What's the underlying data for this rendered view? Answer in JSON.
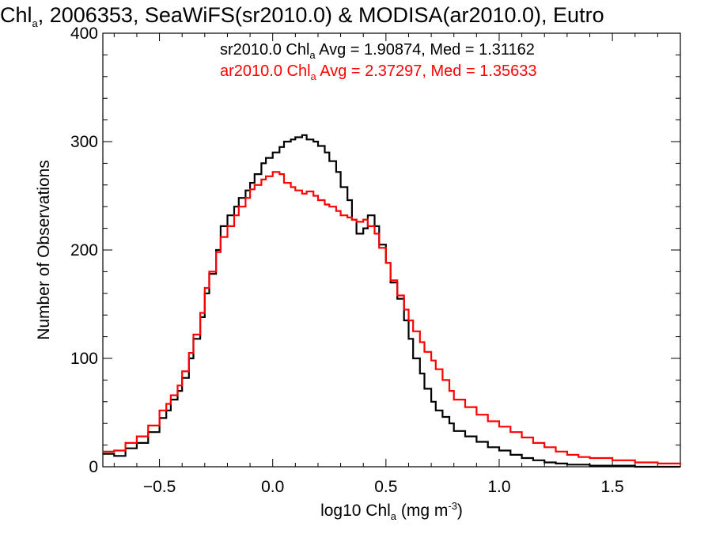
{
  "chart_data": {
    "type": "line",
    "title": {
      "pre": "Chl",
      "sub": "a",
      "post": ", 2006353, SeaWiFS(sr2010.0) & MODISA(ar2010.0), Eutro"
    },
    "xlabel": {
      "pre": "log10 Chl",
      "sub": "a",
      "mid": " (mg m",
      "sup": "-3",
      "post": ")"
    },
    "ylabel": "Number of Observations",
    "xlim": [
      -0.75,
      1.8
    ],
    "ylim": [
      0,
      400
    ],
    "x_ticks": [
      -0.5,
      0.0,
      0.5,
      1.0,
      1.5
    ],
    "x_tick_labels": [
      "−0.5",
      "0.0",
      "0.5",
      "1.0",
      "1.5"
    ],
    "y_ticks": [
      0,
      100,
      200,
      300,
      400
    ],
    "y_tick_labels": [
      "0",
      "100",
      "200",
      "300",
      "400"
    ],
    "grid": false,
    "legend_position": "top-right",
    "series": [
      {
        "color": "#000000",
        "legend": {
          "pre": "sr2010.0 Chl",
          "sub": "a",
          "post": " Avg = 1.90874, Med = 1.31162"
        },
        "points": [
          [
            -0.75,
            12
          ],
          [
            -0.7,
            10
          ],
          [
            -0.65,
            17
          ],
          [
            -0.6,
            22
          ],
          [
            -0.55,
            32
          ],
          [
            -0.5,
            45
          ],
          [
            -0.47,
            52
          ],
          [
            -0.45,
            62
          ],
          [
            -0.42,
            70
          ],
          [
            -0.4,
            82
          ],
          [
            -0.37,
            100
          ],
          [
            -0.35,
            118
          ],
          [
            -0.32,
            138
          ],
          [
            -0.3,
            160
          ],
          [
            -0.28,
            178
          ],
          [
            -0.25,
            200
          ],
          [
            -0.23,
            222
          ],
          [
            -0.2,
            232
          ],
          [
            -0.17,
            240
          ],
          [
            -0.15,
            248
          ],
          [
            -0.12,
            255
          ],
          [
            -0.1,
            262
          ],
          [
            -0.08,
            270
          ],
          [
            -0.05,
            280
          ],
          [
            -0.03,
            285
          ],
          [
            0.0,
            290
          ],
          [
            0.03,
            295
          ],
          [
            0.05,
            300
          ],
          [
            0.08,
            302
          ],
          [
            0.1,
            304
          ],
          [
            0.13,
            306
          ],
          [
            0.15,
            302
          ],
          [
            0.18,
            300
          ],
          [
            0.2,
            296
          ],
          [
            0.23,
            290
          ],
          [
            0.25,
            282
          ],
          [
            0.28,
            272
          ],
          [
            0.3,
            258
          ],
          [
            0.33,
            246
          ],
          [
            0.35,
            228
          ],
          [
            0.37,
            215
          ],
          [
            0.4,
            220
          ],
          [
            0.42,
            232
          ],
          [
            0.45,
            222
          ],
          [
            0.47,
            205
          ],
          [
            0.5,
            188
          ],
          [
            0.52,
            170
          ],
          [
            0.55,
            155
          ],
          [
            0.58,
            135
          ],
          [
            0.6,
            118
          ],
          [
            0.62,
            100
          ],
          [
            0.65,
            86
          ],
          [
            0.67,
            72
          ],
          [
            0.7,
            60
          ],
          [
            0.72,
            52
          ],
          [
            0.75,
            46
          ],
          [
            0.78,
            40
          ],
          [
            0.8,
            33
          ],
          [
            0.85,
            28
          ],
          [
            0.9,
            23
          ],
          [
            0.95,
            18
          ],
          [
            1.0,
            15
          ],
          [
            1.05,
            11
          ],
          [
            1.1,
            8
          ],
          [
            1.15,
            6
          ],
          [
            1.2,
            4
          ],
          [
            1.25,
            3
          ],
          [
            1.3,
            2
          ],
          [
            1.4,
            1
          ],
          [
            1.5,
            1
          ],
          [
            1.6,
            0
          ],
          [
            1.7,
            0
          ],
          [
            1.8,
            0
          ]
        ]
      },
      {
        "color": "#ff0000",
        "legend": {
          "pre": "ar2010.0 Chl",
          "sub": "a",
          "post": " Avg = 2.37297, Med = 1.35633"
        },
        "points": [
          [
            -0.75,
            14
          ],
          [
            -0.7,
            15
          ],
          [
            -0.65,
            22
          ],
          [
            -0.6,
            28
          ],
          [
            -0.55,
            38
          ],
          [
            -0.5,
            52
          ],
          [
            -0.47,
            58
          ],
          [
            -0.45,
            66
          ],
          [
            -0.42,
            75
          ],
          [
            -0.4,
            88
          ],
          [
            -0.37,
            105
          ],
          [
            -0.35,
            122
          ],
          [
            -0.32,
            142
          ],
          [
            -0.3,
            165
          ],
          [
            -0.28,
            180
          ],
          [
            -0.25,
            198
          ],
          [
            -0.23,
            212
          ],
          [
            -0.2,
            222
          ],
          [
            -0.17,
            232
          ],
          [
            -0.15,
            240
          ],
          [
            -0.12,
            248
          ],
          [
            -0.1,
            256
          ],
          [
            -0.08,
            260
          ],
          [
            -0.05,
            265
          ],
          [
            -0.03,
            268
          ],
          [
            0.0,
            272
          ],
          [
            0.03,
            270
          ],
          [
            0.05,
            262
          ],
          [
            0.08,
            258
          ],
          [
            0.1,
            255
          ],
          [
            0.13,
            252
          ],
          [
            0.15,
            254
          ],
          [
            0.18,
            250
          ],
          [
            0.2,
            246
          ],
          [
            0.23,
            242
          ],
          [
            0.25,
            240
          ],
          [
            0.28,
            236
          ],
          [
            0.3,
            232
          ],
          [
            0.33,
            230
          ],
          [
            0.35,
            228
          ],
          [
            0.37,
            226
          ],
          [
            0.4,
            228
          ],
          [
            0.42,
            222
          ],
          [
            0.45,
            215
          ],
          [
            0.47,
            202
          ],
          [
            0.5,
            188
          ],
          [
            0.52,
            172
          ],
          [
            0.55,
            158
          ],
          [
            0.58,
            145
          ],
          [
            0.6,
            135
          ],
          [
            0.62,
            125
          ],
          [
            0.65,
            115
          ],
          [
            0.67,
            106
          ],
          [
            0.7,
            98
          ],
          [
            0.72,
            90
          ],
          [
            0.75,
            80
          ],
          [
            0.78,
            70
          ],
          [
            0.8,
            62
          ],
          [
            0.85,
            55
          ],
          [
            0.9,
            48
          ],
          [
            0.95,
            42
          ],
          [
            1.0,
            37
          ],
          [
            1.05,
            32
          ],
          [
            1.1,
            27
          ],
          [
            1.15,
            22
          ],
          [
            1.2,
            18
          ],
          [
            1.25,
            14
          ],
          [
            1.3,
            11
          ],
          [
            1.35,
            9
          ],
          [
            1.4,
            8
          ],
          [
            1.5,
            6
          ],
          [
            1.6,
            4
          ],
          [
            1.7,
            3
          ],
          [
            1.8,
            2
          ]
        ]
      }
    ]
  }
}
